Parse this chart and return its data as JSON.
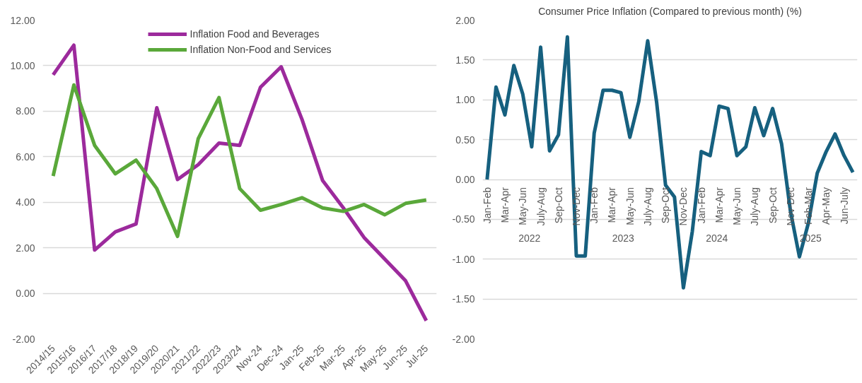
{
  "chart_data": [
    {
      "type": "line",
      "categories": [
        "2014/15",
        "2015/16",
        "2016/17",
        "2017/18",
        "2018/19",
        "2019/20",
        "2020/21",
        "2021/22",
        "2022/23",
        "2023/24",
        "Nov-24",
        "Dec-24",
        "Jan-25",
        "Feb-25",
        "Mar-25",
        "Apr-25",
        "May-25",
        "Jun-25",
        "Jul-25"
      ],
      "series": [
        {
          "name": "Inflation Food and Beverages",
          "color": "#9c2a9c",
          "values": [
            9.6,
            10.9,
            1.9,
            2.7,
            3.05,
            8.15,
            5.0,
            5.65,
            6.6,
            6.5,
            9.05,
            9.95,
            7.65,
            4.95,
            3.75,
            2.45,
            1.5,
            0.55,
            -1.2
          ]
        },
        {
          "name": "Inflation Non-Food and Services",
          "color": "#5aa83a",
          "values": [
            5.15,
            9.15,
            6.5,
            5.25,
            5.85,
            4.6,
            2.5,
            6.8,
            8.6,
            4.6,
            3.65,
            3.9,
            4.2,
            3.75,
            3.6,
            3.9,
            3.45,
            3.95,
            4.1
          ]
        }
      ],
      "ylim": [
        -2,
        12
      ],
      "yticks": [
        {
          "value": -2,
          "label": "-2.00"
        },
        {
          "value": 0,
          "label": "0.00"
        },
        {
          "value": 2,
          "label": "2.00"
        },
        {
          "value": 4,
          "label": "4.00"
        },
        {
          "value": 6,
          "label": "6.00"
        },
        {
          "value": 8,
          "label": "8.00"
        },
        {
          "value": 10,
          "label": "10.00"
        },
        {
          "value": 12,
          "label": "12.00"
        }
      ],
      "grid": "y",
      "legend": "top",
      "marker": "none",
      "line_style": "solid"
    },
    {
      "type": "line",
      "title": "Consumer Price Inflation (Compared to previous month) (%)",
      "categories": [
        "Jan-Feb",
        null,
        "Mar-Apr",
        null,
        "May-Jun",
        null,
        "July-Aug",
        null,
        "Sep-Oct",
        null,
        "Nov-Dec",
        null,
        "Jan-Feb",
        null,
        "Mar-Apr",
        null,
        "May-Jun",
        null,
        "July-Aug",
        null,
        "Sep-Oct",
        null,
        "Nov-Dec",
        null,
        "Jan-Feb",
        null,
        "Mar-Apr",
        null,
        "May-Jun",
        null,
        "July-Aug",
        null,
        "Sep-Oct",
        null,
        "Nov-Dec",
        null,
        "Feb-Mar",
        null,
        "Apr-May",
        null,
        "Jun-July",
        null
      ],
      "series": [
        {
          "color": "#16607f",
          "values": [
            0.0,
            1.16,
            0.81,
            1.43,
            1.07,
            0.41,
            1.66,
            0.36,
            0.56,
            1.79,
            -0.96,
            -0.96,
            0.58,
            1.12,
            1.12,
            1.09,
            0.53,
            0.98,
            1.74,
            0.97,
            -0.07,
            -0.22,
            -1.36,
            -0.65,
            0.35,
            0.3,
            0.92,
            0.89,
            0.3,
            0.41,
            0.9,
            0.55,
            0.89,
            0.45,
            -0.4,
            -0.97,
            -0.55,
            0.08,
            0.35,
            0.57,
            0.3,
            0.09
          ]
        }
      ],
      "annotations": [
        "2022",
        "2023",
        "2024",
        "2025"
      ],
      "ylim": [
        -2,
        2
      ],
      "yticks": [
        {
          "value": -2,
          "label": "-2.00"
        },
        {
          "value": -1.5,
          "label": "-1.50"
        },
        {
          "value": -1,
          "label": "-1.00"
        },
        {
          "value": -0.5,
          "label": "-0.50"
        },
        {
          "value": 0,
          "label": "0.00"
        },
        {
          "value": 0.5,
          "label": "0.50"
        },
        {
          "value": 1,
          "label": "1.00"
        },
        {
          "value": 1.5,
          "label": "1.50"
        },
        {
          "value": 2,
          "label": "2.00"
        }
      ],
      "grid": "y",
      "marker": "none",
      "line_style": "solid"
    }
  ]
}
